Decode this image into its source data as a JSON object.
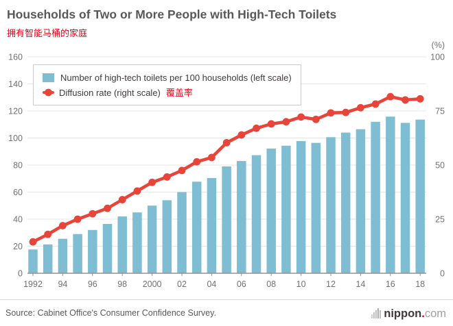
{
  "header": {
    "title": "Households of Two or More People with High-Tech Toilets",
    "subtitle_zh": "拥有智能马桶的家庭"
  },
  "legend": {
    "bars_label": "Number of high-tech toilets per 100 households (left scale)",
    "line_label": "Diffusion rate (right scale)",
    "line_label_zh": "覆盖率"
  },
  "chart_data": {
    "type": "bar+line",
    "x": [
      1992,
      1993,
      1994,
      1995,
      1996,
      1997,
      1998,
      1999,
      2000,
      2001,
      2002,
      2003,
      2004,
      2005,
      2006,
      2007,
      2008,
      2009,
      2010,
      2011,
      2012,
      2013,
      2014,
      2015,
      2016,
      2017,
      2018
    ],
    "x_tick_labels": [
      "1992",
      "",
      "94",
      "",
      "96",
      "",
      "98",
      "",
      "2000",
      "",
      "02",
      "",
      "04",
      "",
      "06",
      "",
      "08",
      "",
      "10",
      "",
      "12",
      "",
      "14",
      "",
      "16",
      "",
      "18"
    ],
    "series": [
      {
        "name": "Number of high-tech toilets per 100 households",
        "type": "bar",
        "axis": "left",
        "color": "#7fbdd3",
        "values": [
          17.6,
          21.3,
          25.5,
          29,
          32,
          36.5,
          42,
          45,
          50,
          54,
          60,
          67.7,
          70.4,
          79,
          83,
          87.3,
          92.2,
          94.3,
          97.7,
          96.4,
          100.6,
          104,
          106.5,
          112,
          115.8,
          111.2,
          113.6
        ]
      },
      {
        "name": "Diffusion rate",
        "type": "line",
        "axis": "right",
        "color": "#e8453a",
        "values": [
          14.5,
          18,
          22,
          25,
          27.5,
          30,
          34,
          38,
          42,
          44.5,
          47.5,
          51.5,
          53.5,
          60.3,
          63.9,
          67,
          69,
          70,
          72.2,
          71.1,
          74.1,
          74.3,
          76.5,
          78.2,
          81.6,
          80.1,
          80.6
        ]
      }
    ],
    "left_axis": {
      "min": 0,
      "max": 160,
      "ticks": [
        0,
        20,
        40,
        60,
        80,
        100,
        120,
        140,
        160
      ]
    },
    "right_axis": {
      "min": 0,
      "max": 100,
      "ticks": [
        0,
        25,
        50,
        75,
        100
      ],
      "unit_label": "(%)"
    },
    "grid": true,
    "legend_position": "top-left"
  },
  "footer": {
    "source": "Source: Cabinet Office's Consumer Confidence Survey.",
    "logo": {
      "name": "nippon",
      "dot": ".",
      "tld": "com"
    }
  },
  "colors": {
    "bar_blue": "#7fbdd3",
    "line_red": "#e8453a",
    "accent_red": "#e60012",
    "title_gray": "#595757",
    "axis_text_gray": "#727171",
    "grid_gray": "#e4e4e4",
    "axis_line_gray": "#8f9396"
  }
}
